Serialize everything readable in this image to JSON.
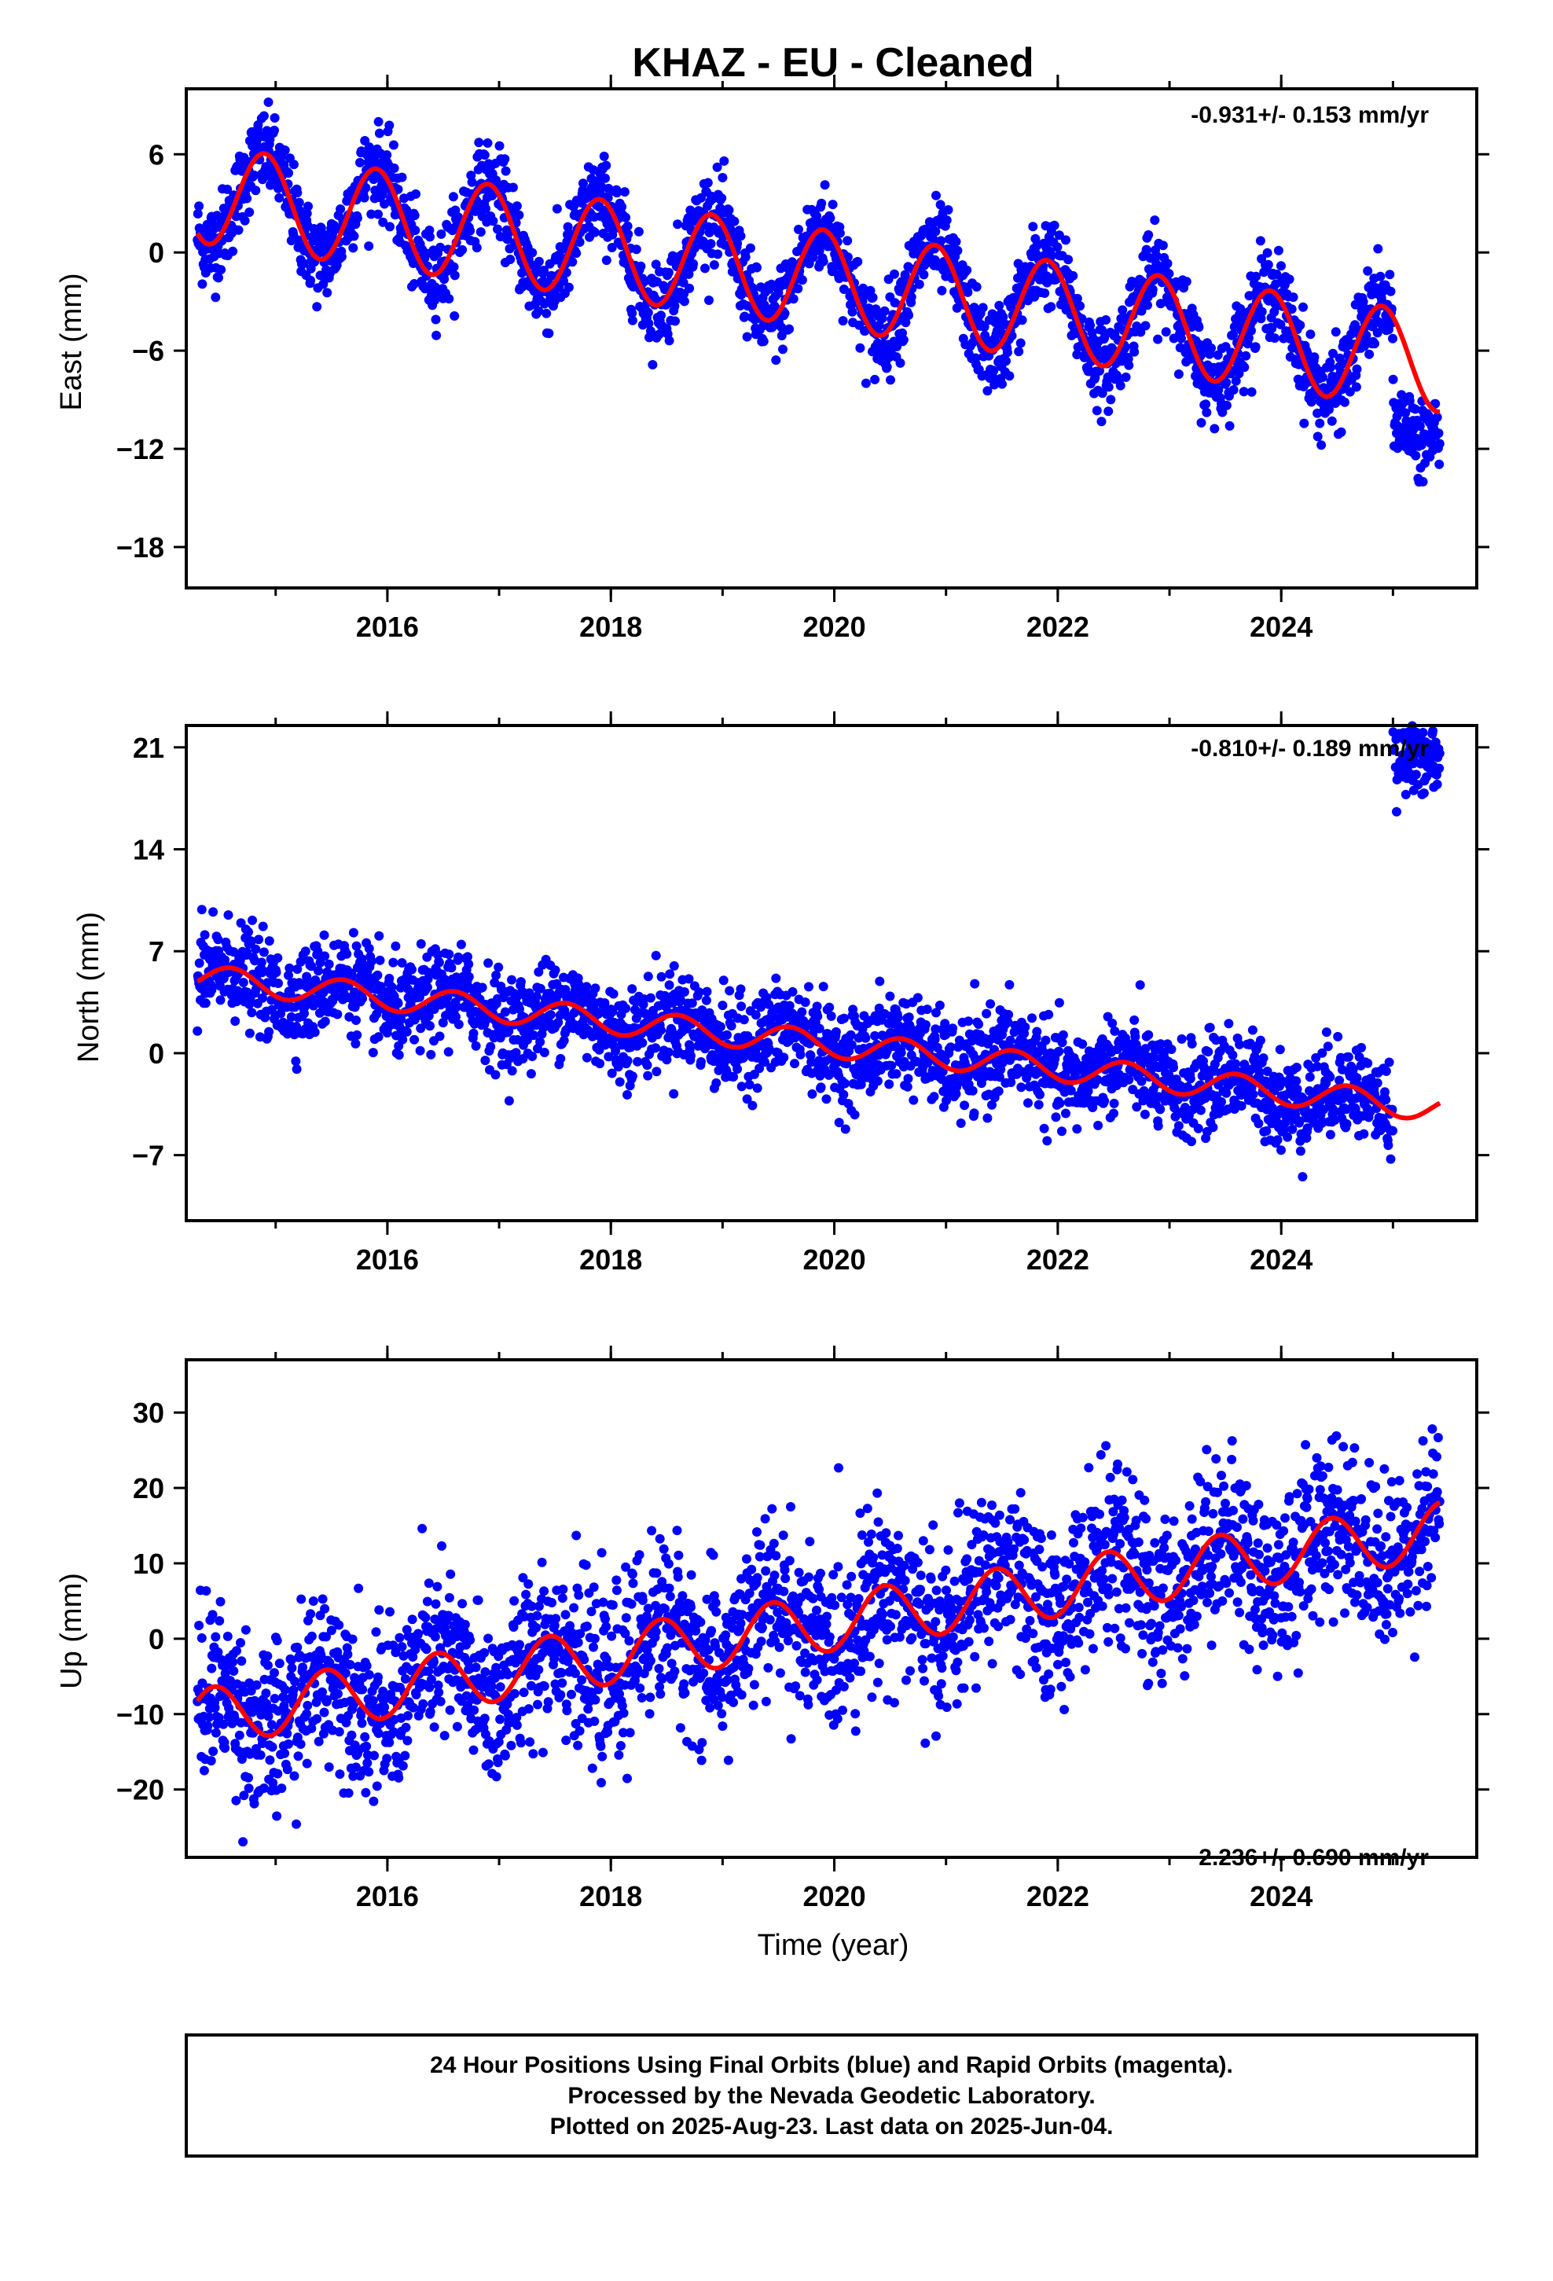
{
  "title": "KHAZ  - EU - Cleaned",
  "footer": {
    "line1": "24 Hour Positions Using Final Orbits (blue) and Rapid Orbits (magenta).",
    "line2": "Processed by the Nevada Geodetic Laboratory.",
    "line3": "Plotted on 2025-Aug-23. Last data on 2025-Jun-04."
  },
  "colors": {
    "data": "#0000ff",
    "model": "#ff0000",
    "frame": "#000000"
  },
  "chart_data": [
    {
      "type": "scatter",
      "panel": "east",
      "ylabel": "East (mm)",
      "xlabel": "",
      "rate": "-0.931+/- 0.153 mm/yr",
      "rate_position": "top-right",
      "xlim": [
        2014.2,
        2025.75
      ],
      "ylim": [
        -20.5,
        10
      ],
      "xticks": [
        2016,
        2018,
        2020,
        2022,
        2024
      ],
      "yticks": [
        6,
        0,
        -6,
        -12,
        -18
      ],
      "data_range": [
        2014.3,
        2025.42
      ],
      "trend": {
        "t0": 2014.3,
        "y0": 3.6,
        "rate": -0.931
      },
      "seasonal": {
        "amplitude": 3.0,
        "period_years": 1.0,
        "peak": 2014.9
      },
      "offset": {
        "year": 2025.0,
        "value": -10.5
      },
      "model_end": 2025.42,
      "series": [
        {
          "name": "Final Orbits (blue)",
          "values": []
        },
        {
          "name": "model",
          "values": []
        }
      ]
    },
    {
      "type": "scatter",
      "panel": "north",
      "ylabel": "North (mm)",
      "xlabel": "",
      "rate": "-0.810+/- 0.189 mm/yr",
      "rate_position": "top-right",
      "xlim": [
        2014.2,
        2025.75
      ],
      "ylim": [
        -11.5,
        22.5
      ],
      "xticks": [
        2016,
        2018,
        2020,
        2022,
        2024
      ],
      "yticks": [
        21,
        14,
        7,
        0,
        -7
      ],
      "data_range": [
        2014.3,
        2025.42
      ],
      "trend": {
        "t0": 2014.3,
        "y0": 5.2,
        "rate": -0.81
      },
      "seasonal": {
        "amplitude": 0.9,
        "period_years": 1.0,
        "peak": 2014.6
      },
      "offset": {
        "year": 2025.0,
        "value": 21.0
      },
      "model_end": 2025.42,
      "series": [
        {
          "name": "Final Orbits (blue)",
          "values": []
        },
        {
          "name": "model",
          "values": []
        }
      ]
    },
    {
      "type": "scatter",
      "panel": "up",
      "ylabel": "Up (mm)",
      "xlabel": "Time (year)",
      "rate": "2.236+/- 0.690 mm/yr",
      "rate_position": "bottom-right",
      "xlim": [
        2014.2,
        2025.75
      ],
      "ylim": [
        -29,
        37
      ],
      "xticks": [
        2016,
        2018,
        2020,
        2022,
        2024
      ],
      "yticks": [
        30,
        20,
        10,
        0,
        -10,
        -20
      ],
      "data_range": [
        2014.3,
        2025.42
      ],
      "trend": {
        "t0": 2014.3,
        "y0": -10.5,
        "rate": 2.236
      },
      "seasonal": {
        "amplitude": 3.8,
        "period_years": 1.0,
        "peak": 2014.45
      },
      "offset": null,
      "model_end": 2025.42,
      "series": [
        {
          "name": "Final Orbits (blue)",
          "values": []
        },
        {
          "name": "model",
          "values": []
        }
      ]
    }
  ]
}
